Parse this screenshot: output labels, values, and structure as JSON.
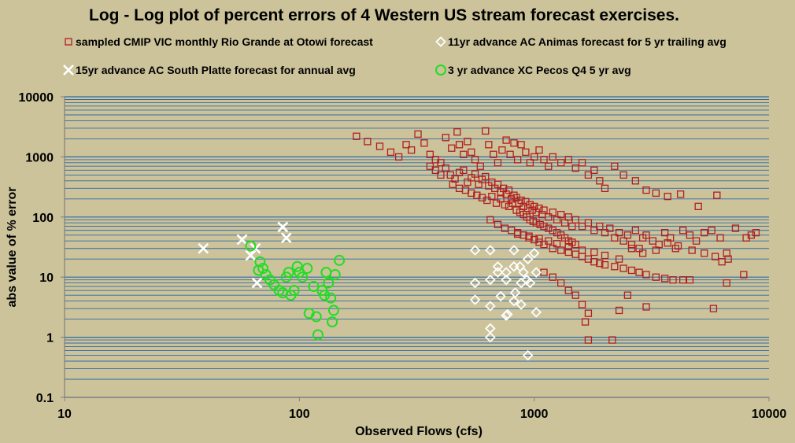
{
  "chart_data": {
    "type": "scatter",
    "title": "Log - Log plot of percent errors of 4 Western US stream forecast exercises.",
    "xlabel": "Observed Flows  (cfs)",
    "ylabel": "abs value of % error",
    "xscale": "log",
    "yscale": "log",
    "xlim": [
      10,
      10000
    ],
    "ylim": [
      0.1,
      10000
    ],
    "x_tick_labels": [
      "10",
      "100",
      "1000",
      "10000"
    ],
    "x_tick_values": [
      10,
      100,
      1000,
      10000
    ],
    "y_tick_labels": [
      "0.1",
      "1",
      "10",
      "100",
      "1000",
      "10000"
    ],
    "y_tick_values": [
      0.1,
      1,
      10,
      100,
      1000,
      10000
    ],
    "grid": "horizontal minor and major",
    "legend_position": "top",
    "colors": {
      "background": "#CCC39B",
      "gridline": "#2E6AA4",
      "rio_grande": "#B21E1E",
      "animas": "#FFFFFF",
      "south_platte": "#FFFFFF",
      "pecos": "#22DD22"
    },
    "series": [
      {
        "name": "sampled CMIP VIC monthly Rio Grande at Otowi forecast",
        "marker": "square",
        "color": "#B21E1E",
        "points": [
          [
            175,
            2200
          ],
          [
            195,
            1800
          ],
          [
            220,
            1500
          ],
          [
            245,
            1200
          ],
          [
            265,
            1000
          ],
          [
            285,
            1600
          ],
          [
            300,
            1300
          ],
          [
            320,
            2400
          ],
          [
            340,
            1700
          ],
          [
            360,
            1100
          ],
          [
            380,
            900
          ],
          [
            400,
            800
          ],
          [
            420,
            2100
          ],
          [
            445,
            1400
          ],
          [
            470,
            2600
          ],
          [
            480,
            1600
          ],
          [
            500,
            1100
          ],
          [
            520,
            1800
          ],
          [
            540,
            1200
          ],
          [
            560,
            900
          ],
          [
            590,
            700
          ],
          [
            620,
            2700
          ],
          [
            640,
            1600
          ],
          [
            670,
            1100
          ],
          [
            700,
            800
          ],
          [
            730,
            1300
          ],
          [
            760,
            1900
          ],
          [
            790,
            1100
          ],
          [
            820,
            1700
          ],
          [
            850,
            900
          ],
          [
            880,
            1600
          ],
          [
            920,
            1200
          ],
          [
            960,
            800
          ],
          [
            1000,
            1000
          ],
          [
            1050,
            1300
          ],
          [
            1100,
            900
          ],
          [
            1150,
            700
          ],
          [
            1200,
            1000
          ],
          [
            1300,
            800
          ],
          [
            1400,
            900
          ],
          [
            1500,
            650
          ],
          [
            1600,
            800
          ],
          [
            1700,
            500
          ],
          [
            1800,
            600
          ],
          [
            1900,
            400
          ],
          [
            2000,
            300
          ],
          [
            2200,
            700
          ],
          [
            2400,
            500
          ],
          [
            2700,
            400
          ],
          [
            3000,
            280
          ],
          [
            3300,
            250
          ],
          [
            3700,
            220
          ],
          [
            4200,
            240
          ],
          [
            5000,
            150
          ],
          [
            6000,
            230
          ],
          [
            360,
            700
          ],
          [
            380,
            600
          ],
          [
            400,
            500
          ],
          [
            420,
            650
          ],
          [
            440,
            500
          ],
          [
            460,
            430
          ],
          [
            480,
            550
          ],
          [
            500,
            600
          ],
          [
            520,
            380
          ],
          [
            540,
            450
          ],
          [
            560,
            520
          ],
          [
            580,
            350
          ],
          [
            600,
            420
          ],
          [
            620,
            470
          ],
          [
            640,
            330
          ],
          [
            660,
            380
          ],
          [
            680,
            300
          ],
          [
            700,
            350
          ],
          [
            720,
            260
          ],
          [
            740,
            300
          ],
          [
            760,
            240
          ],
          [
            780,
            280
          ],
          [
            800,
            200
          ],
          [
            820,
            230
          ],
          [
            840,
            210
          ],
          [
            860,
            170
          ],
          [
            880,
            190
          ],
          [
            900,
            150
          ],
          [
            920,
            180
          ],
          [
            940,
            140
          ],
          [
            960,
            160
          ],
          [
            980,
            130
          ],
          [
            1000,
            150
          ],
          [
            1020,
            120
          ],
          [
            1050,
            140
          ],
          [
            1080,
            110
          ],
          [
            1100,
            130
          ],
          [
            1150,
            100
          ],
          [
            1200,
            120
          ],
          [
            1250,
            90
          ],
          [
            1300,
            110
          ],
          [
            1350,
            80
          ],
          [
            1400,
            100
          ],
          [
            1450,
            70
          ],
          [
            1500,
            90
          ],
          [
            1600,
            70
          ],
          [
            1700,
            80
          ],
          [
            1800,
            60
          ],
          [
            1900,
            70
          ],
          [
            2000,
            55
          ],
          [
            2100,
            65
          ],
          [
            2200,
            45
          ],
          [
            2300,
            55
          ],
          [
            2400,
            40
          ],
          [
            2500,
            50
          ],
          [
            2600,
            35
          ],
          [
            2700,
            60
          ],
          [
            2800,
            30
          ],
          [
            2900,
            45
          ],
          [
            3000,
            50
          ],
          [
            3200,
            40
          ],
          [
            3400,
            35
          ],
          [
            3600,
            55
          ],
          [
            3800,
            45
          ],
          [
            4000,
            30
          ],
          [
            4300,
            60
          ],
          [
            4600,
            50
          ],
          [
            4900,
            40
          ],
          [
            5300,
            55
          ],
          [
            5700,
            60
          ],
          [
            6200,
            45
          ],
          [
            6600,
            25
          ],
          [
            7200,
            65
          ],
          [
            8000,
            45
          ],
          [
            8800,
            55
          ],
          [
            450,
            350
          ],
          [
            480,
            300
          ],
          [
            510,
            280
          ],
          [
            540,
            250
          ],
          [
            570,
            230
          ],
          [
            600,
            210
          ],
          [
            630,
            190
          ],
          [
            660,
            220
          ],
          [
            690,
            170
          ],
          [
            720,
            200
          ],
          [
            750,
            160
          ],
          [
            780,
            150
          ],
          [
            810,
            170
          ],
          [
            840,
            130
          ],
          [
            870,
            120
          ],
          [
            900,
            110
          ],
          [
            930,
            100
          ],
          [
            960,
            90
          ],
          [
            990,
            85
          ],
          [
            1020,
            80
          ],
          [
            1060,
            75
          ],
          [
            1100,
            70
          ],
          [
            1150,
            65
          ],
          [
            1200,
            60
          ],
          [
            1250,
            55
          ],
          [
            1300,
            50
          ],
          [
            1350,
            45
          ],
          [
            1400,
            40
          ],
          [
            1450,
            38
          ],
          [
            1500,
            35
          ],
          [
            650,
            90
          ],
          [
            700,
            75
          ],
          [
            750,
            65
          ],
          [
            800,
            60
          ],
          [
            850,
            55
          ],
          [
            900,
            50
          ],
          [
            950,
            45
          ],
          [
            1000,
            42
          ],
          [
            1050,
            38
          ],
          [
            1100,
            35
          ],
          [
            1200,
            30
          ],
          [
            1300,
            28
          ],
          [
            1400,
            26
          ],
          [
            1500,
            24
          ],
          [
            1600,
            22
          ],
          [
            1700,
            20
          ],
          [
            1800,
            18
          ],
          [
            1900,
            17
          ],
          [
            2000,
            16
          ],
          [
            2200,
            15
          ],
          [
            2400,
            14
          ],
          [
            2600,
            13
          ],
          [
            2800,
            12
          ],
          [
            3000,
            11
          ],
          [
            3300,
            10
          ],
          [
            3600,
            9.5
          ],
          [
            3900,
            9
          ],
          [
            4300,
            9
          ],
          [
            4600,
            9
          ],
          [
            1100,
            12
          ],
          [
            1200,
            10
          ],
          [
            1300,
            8
          ],
          [
            1400,
            6
          ],
          [
            1500,
            5
          ],
          [
            1600,
            3.5
          ],
          [
            1700,
            2.5
          ],
          [
            1650,
            1.8
          ],
          [
            1700,
            0.9
          ],
          [
            2150,
            0.9
          ],
          [
            2300,
            2.8
          ],
          [
            2500,
            5
          ],
          [
            3000,
            3.2
          ],
          [
            5800,
            3
          ],
          [
            6600,
            8
          ],
          [
            7800,
            11
          ],
          [
            8400,
            50
          ],
          [
            5900,
            22
          ],
          [
            6300,
            18
          ],
          [
            6700,
            20
          ],
          [
            5300,
            25
          ],
          [
            4700,
            28
          ],
          [
            4100,
            33
          ],
          [
            3700,
            37
          ],
          [
            3300,
            28
          ],
          [
            2900,
            25
          ],
          [
            2600,
            30
          ],
          [
            2300,
            20
          ],
          [
            2000,
            23
          ],
          [
            1800,
            26
          ],
          [
            1600,
            28
          ],
          [
            1400,
            32
          ],
          [
            1250,
            36
          ],
          [
            1150,
            40
          ],
          [
            1050,
            44
          ],
          [
            950,
            48
          ],
          [
            850,
            52
          ]
        ]
      },
      {
        "name": "11yr advance AC Animas forecast for 5 yr trailing avg",
        "marker": "diamond",
        "color": "#FFFFFF",
        "points": [
          [
            560,
            28
          ],
          [
            650,
            28
          ],
          [
            700,
            15
          ],
          [
            760,
            12
          ],
          [
            820,
            28
          ],
          [
            870,
            15
          ],
          [
            900,
            12
          ],
          [
            940,
            20
          ],
          [
            1000,
            25
          ],
          [
            1020,
            12
          ],
          [
            560,
            8
          ],
          [
            650,
            9
          ],
          [
            700,
            12
          ],
          [
            760,
            9
          ],
          [
            820,
            15
          ],
          [
            880,
            8
          ],
          [
            930,
            9
          ],
          [
            960,
            8
          ],
          [
            560,
            4.2
          ],
          [
            650,
            3.3
          ],
          [
            720,
            4.8
          ],
          [
            760,
            2.3
          ],
          [
            820,
            4
          ],
          [
            880,
            3.5
          ],
          [
            1020,
            2.6
          ],
          [
            650,
            1.4
          ],
          [
            650,
            1.0
          ],
          [
            940,
            0.5
          ],
          [
            770,
            2.4
          ],
          [
            830,
            5.5
          ]
        ]
      },
      {
        "name": "15yr advance AC South Platte forecast for annual avg",
        "marker": "x",
        "color": "#FFFFFF",
        "points": [
          [
            39,
            30
          ],
          [
            57,
            42
          ],
          [
            62,
            23
          ],
          [
            65,
            30
          ],
          [
            66,
            8
          ],
          [
            85,
            68
          ],
          [
            88,
            45
          ]
        ]
      },
      {
        "name": "3 yr advance XC Pecos Q4 5 yr avg",
        "marker": "circle",
        "color": "#22DD22",
        "points": [
          [
            62,
            33
          ],
          [
            67,
            13
          ],
          [
            68,
            18
          ],
          [
            70,
            14
          ],
          [
            72,
            11
          ],
          [
            75,
            9
          ],
          [
            78,
            7.5
          ],
          [
            82,
            6
          ],
          [
            85,
            5.5
          ],
          [
            88,
            10
          ],
          [
            90,
            12
          ],
          [
            92,
            5
          ],
          [
            95,
            6
          ],
          [
            98,
            15
          ],
          [
            100,
            12
          ],
          [
            103,
            10
          ],
          [
            108,
            14
          ],
          [
            110,
            2.5
          ],
          [
            115,
            7
          ],
          [
            118,
            2.2
          ],
          [
            120,
            1.1
          ],
          [
            125,
            6
          ],
          [
            128,
            5
          ],
          [
            130,
            12
          ],
          [
            133,
            8
          ],
          [
            136,
            4.5
          ],
          [
            138,
            1.8
          ],
          [
            140,
            2.8
          ],
          [
            142,
            11
          ],
          [
            148,
            19
          ]
        ]
      }
    ]
  }
}
